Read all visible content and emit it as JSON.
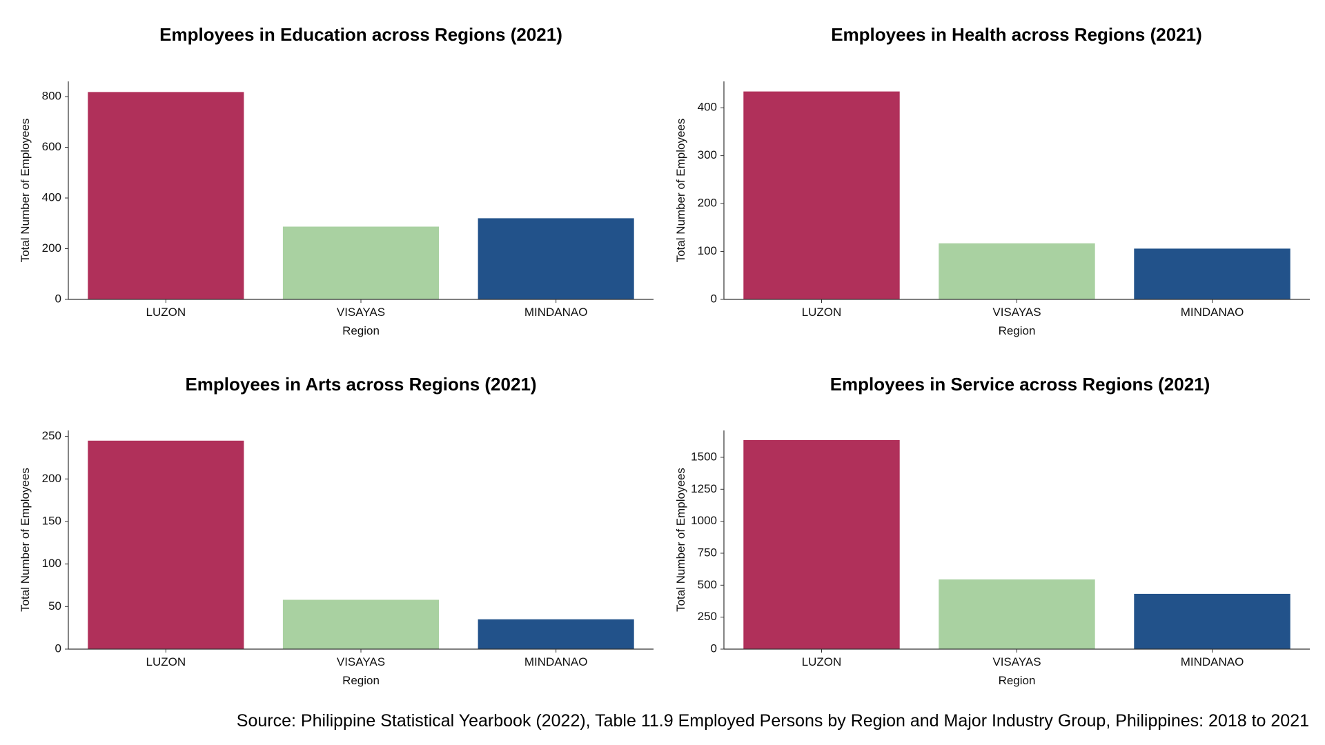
{
  "chart_data": [
    {
      "type": "bar",
      "title": "Employees in Education across Regions (2021)",
      "xlabel": "Region",
      "ylabel": "Total Number of Employees",
      "categories": [
        "LUZON",
        "VISAYAS",
        "MINDANAO"
      ],
      "values": [
        818,
        287,
        320
      ],
      "ylim": [
        0,
        860
      ],
      "yticks": [
        0,
        200,
        400,
        600,
        800
      ],
      "colors": [
        "#b0305a",
        "#a9d1a1",
        "#22528a"
      ],
      "grid": false
    },
    {
      "type": "bar",
      "title": "Employees in Health across Regions (2021)",
      "xlabel": "Region",
      "ylabel": "Total Number of Employees",
      "categories": [
        "LUZON",
        "VISAYAS",
        "MINDANAO"
      ],
      "values": [
        434,
        117,
        106
      ],
      "ylim": [
        0,
        455
      ],
      "yticks": [
        0,
        100,
        200,
        300,
        400
      ],
      "colors": [
        "#b0305a",
        "#a9d1a1",
        "#22528a"
      ],
      "grid": false
    },
    {
      "type": "bar",
      "title": "Employees in Arts across Regions (2021)",
      "xlabel": "Region",
      "ylabel": "Total Number of Employees",
      "categories": [
        "LUZON",
        "VISAYAS",
        "MINDANAO"
      ],
      "values": [
        245,
        58,
        35
      ],
      "ylim": [
        0,
        257
      ],
      "yticks": [
        0,
        50,
        100,
        150,
        200,
        250
      ],
      "colors": [
        "#b0305a",
        "#a9d1a1",
        "#22528a"
      ],
      "grid": false
    },
    {
      "type": "bar",
      "title": "Employees in Service across Regions (2021)",
      "xlabel": "Region",
      "ylabel": "Total Number of Employees",
      "categories": [
        "LUZON",
        "VISAYAS",
        "MINDANAO"
      ],
      "values": [
        1635,
        545,
        432
      ],
      "ylim": [
        0,
        1710
      ],
      "yticks": [
        0,
        250,
        500,
        750,
        1000,
        1250,
        1500
      ],
      "colors": [
        "#b0305a",
        "#a9d1a1",
        "#22528a"
      ],
      "grid": false
    }
  ],
  "source": "Source: Philippine Statistical Yearbook (2022), Table 11.9 Employed Persons by Region and Major Industry Group, Philippines: 2018 to 2021"
}
